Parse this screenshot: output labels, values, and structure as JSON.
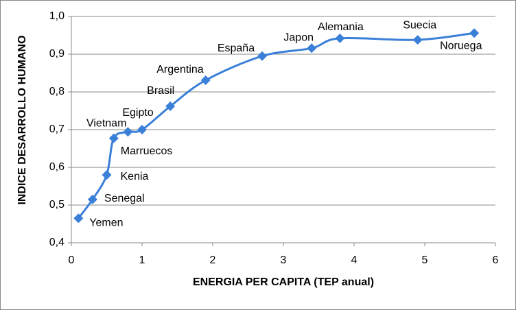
{
  "chart_data": {
    "type": "line",
    "xlabel": "ENERGIA PER CAPITA  (TEP anual)",
    "ylabel": "INDICE DESARROLLO HUMANO",
    "x": [
      0.1,
      0.3,
      0.5,
      0.6,
      0.8,
      1.0,
      1.4,
      1.9,
      2.7,
      3.4,
      3.8,
      4.9,
      5.7
    ],
    "series": [
      {
        "color": "#3a7fd8",
        "values": [
          0.465,
          0.515,
          0.58,
          0.677,
          0.694,
          0.7,
          0.762,
          0.831,
          0.895,
          0.916,
          0.942,
          0.938,
          0.956
        ],
        "point_labels": [
          "Yemen",
          "Senegal",
          "Kenia",
          "Marruecos",
          "Vietnam",
          "Egipto",
          "Brasil",
          "Argentina",
          "España",
          "Japon",
          "Alemania",
          "Suecia",
          "Noruega"
        ]
      }
    ],
    "xlim": [
      0,
      6
    ],
    "xticks": [
      0,
      1,
      2,
      3,
      4,
      5,
      6
    ],
    "ylim": [
      0.4,
      1.0
    ],
    "yticks": [
      {
        "value": 0.4,
        "label": "0,4"
      },
      {
        "value": 0.5,
        "label": "0,5"
      },
      {
        "value": 0.6,
        "label": "0,6"
      },
      {
        "value": 0.7,
        "label": "0,7"
      },
      {
        "value": 0.8,
        "label": "0,8"
      },
      {
        "value": 0.9,
        "label": "0,9"
      },
      {
        "value": 1.0,
        "label": "1,0"
      }
    ],
    "grid": true
  }
}
